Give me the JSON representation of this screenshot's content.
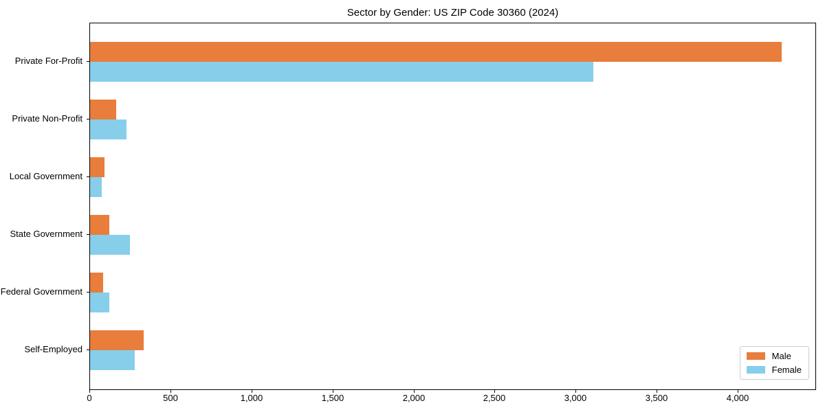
{
  "title": "Sector by Gender: US ZIP Code 30360 (2024)",
  "chart_data": {
    "type": "bar",
    "orientation": "horizontal",
    "title": "Sector by Gender: US ZIP Code 30360 (2024)",
    "categories": [
      "Private For-Profit",
      "Private Non-Profit",
      "Local Government",
      "State Government",
      "Federal Government",
      "Self-Employed"
    ],
    "series": [
      {
        "name": "Male",
        "color": "#e87d3c",
        "values": [
          4267,
          160,
          90,
          119,
          82,
          331
        ]
      },
      {
        "name": "Female",
        "color": "#87ceeb",
        "values": [
          3105,
          223,
          73,
          246,
          120,
          277
        ]
      }
    ],
    "xlabel": "",
    "ylabel": "",
    "xlim": [
      0,
      4483
    ],
    "xticks": {
      "values": [
        0,
        500,
        1000,
        1500,
        2000,
        2500,
        3000,
        3500,
        4000
      ],
      "labels": [
        "0",
        "500",
        "1,000",
        "1,500",
        "2,000",
        "2,500",
        "3,000",
        "3,500",
        "4,000"
      ]
    },
    "grid": false,
    "legend_position": "lower right",
    "plot_border_color": "#000000"
  }
}
